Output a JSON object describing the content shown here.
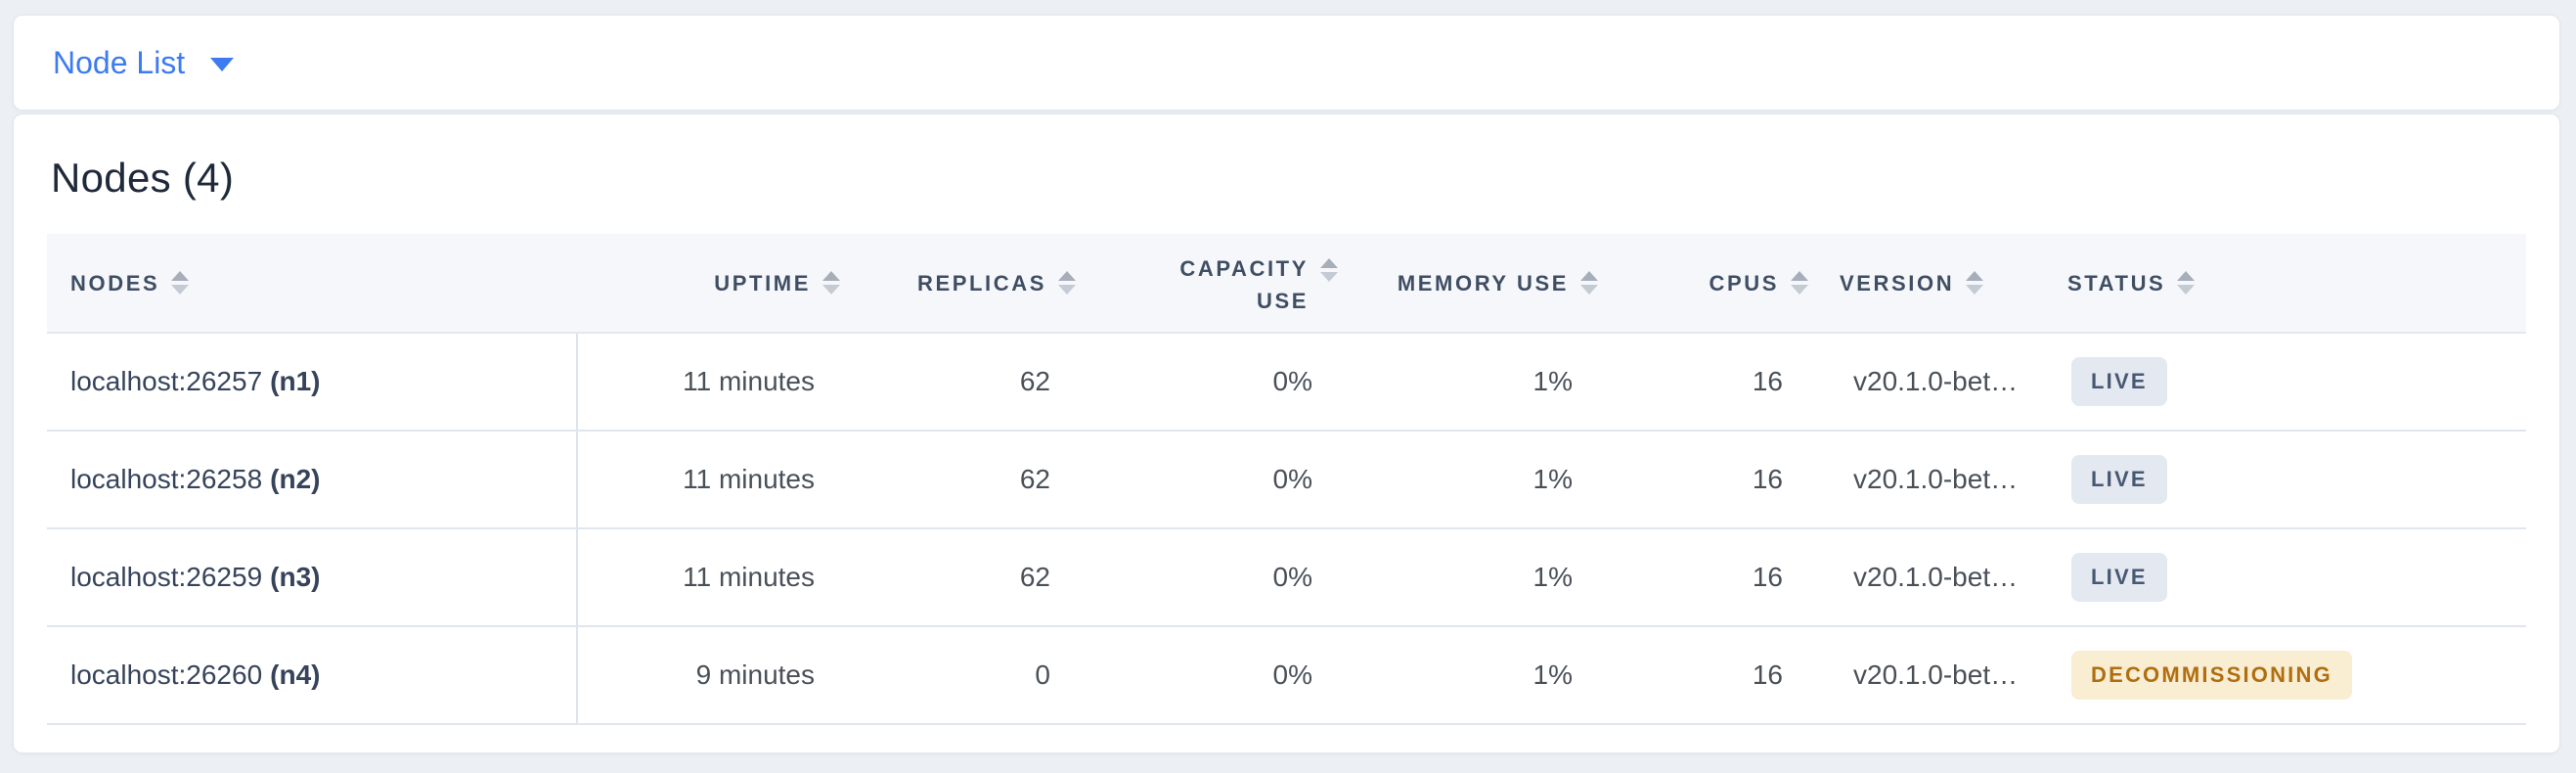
{
  "view_selector": {
    "label": "Node List"
  },
  "section": {
    "title": "Nodes (4)"
  },
  "table": {
    "columns": [
      {
        "label": "NODES"
      },
      {
        "label": "UPTIME"
      },
      {
        "label": "REPLICAS"
      },
      {
        "label": "CAPACITY USE"
      },
      {
        "label": "MEMORY USE"
      },
      {
        "label": "CPUS"
      },
      {
        "label": "VERSION"
      },
      {
        "label": "STATUS"
      }
    ],
    "rows": [
      {
        "address": "localhost:26257",
        "id": "(n1)",
        "uptime": "11 minutes",
        "replicas": "62",
        "capacity_use": "0%",
        "memory_use": "1%",
        "cpus": "16",
        "version": "v20.1.0-bet…",
        "status": "LIVE"
      },
      {
        "address": "localhost:26258",
        "id": "(n2)",
        "uptime": "11 minutes",
        "replicas": "62",
        "capacity_use": "0%",
        "memory_use": "1%",
        "cpus": "16",
        "version": "v20.1.0-bet…",
        "status": "LIVE"
      },
      {
        "address": "localhost:26259",
        "id": "(n3)",
        "uptime": "11 minutes",
        "replicas": "62",
        "capacity_use": "0%",
        "memory_use": "1%",
        "cpus": "16",
        "version": "v20.1.0-bet…",
        "status": "LIVE"
      },
      {
        "address": "localhost:26260",
        "id": "(n4)",
        "uptime": "9 minutes",
        "replicas": "0",
        "capacity_use": "0%",
        "memory_use": "1%",
        "cpus": "16",
        "version": "v20.1.0-bet…",
        "status": "DECOMMISSIONING"
      }
    ]
  },
  "colors": {
    "accent_blue": "#3c7bf0",
    "live_badge_bg": "#e4e8f0",
    "live_badge_text": "#475872",
    "decommissioning_badge_bg": "#f9edd2",
    "decommissioning_badge_text": "#b06e10"
  }
}
